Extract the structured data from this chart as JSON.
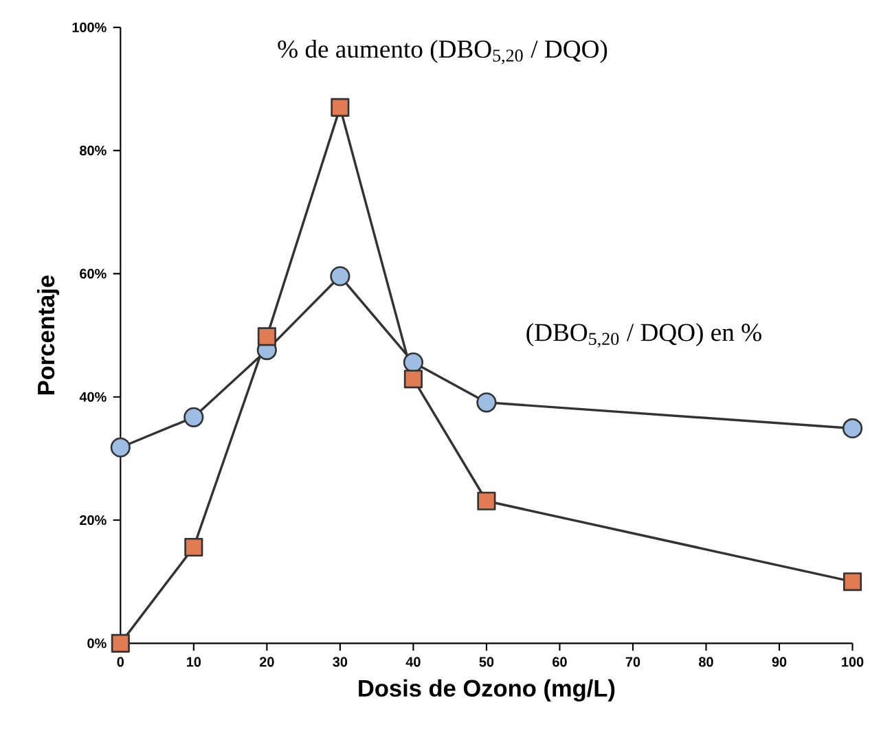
{
  "chart_data": {
    "type": "line",
    "xlabel": "Dosis de Ozono (mg/L)",
    "ylabel": "Porcentaje",
    "xlim": [
      0,
      100
    ],
    "xticks": [
      0,
      10,
      20,
      30,
      40,
      50,
      60,
      70,
      80,
      90,
      100
    ],
    "ylim": [
      0,
      100
    ],
    "yticks": [
      {
        "value": 0,
        "label": "0%"
      },
      {
        "value": 20,
        "label": "20%"
      },
      {
        "value": 40,
        "label": "40%"
      },
      {
        "value": 60,
        "label": "60%"
      },
      {
        "value": 80,
        "label": "80%"
      },
      {
        "value": 100,
        "label": "100%"
      }
    ],
    "series": [
      {
        "name": "(DBO$_{5,20}$ / DQO)  en %",
        "color": "#9dbde2",
        "marker": "circle",
        "x": [
          0,
          10,
          20,
          30,
          40,
          50,
          100
        ],
        "values": [
          31.8,
          36.7,
          47.6,
          59.6,
          45.6,
          39.1,
          34.9
        ]
      },
      {
        "name": "% de aumento (DBO$_{5,20}$ / DQO)",
        "color": "#e07b54",
        "marker": "square",
        "x": [
          0,
          10,
          20,
          30,
          40,
          50,
          100
        ],
        "values": [
          0,
          15.6,
          49.8,
          87,
          42.9,
          23.1,
          10
        ]
      }
    ]
  }
}
